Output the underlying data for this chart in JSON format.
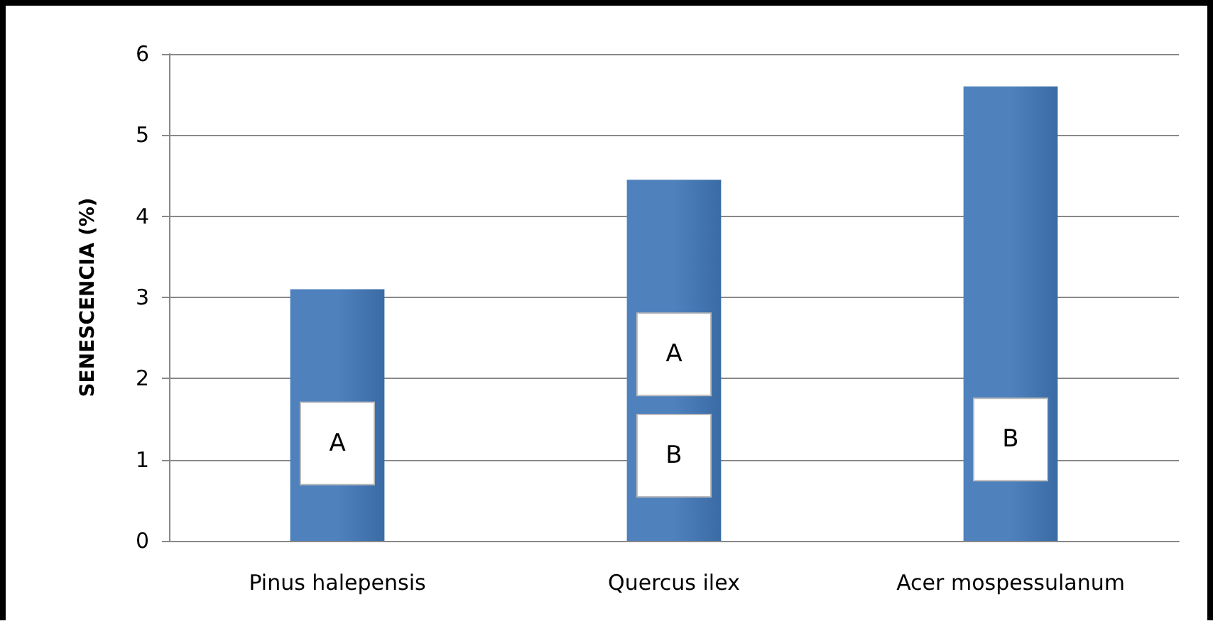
{
  "chart_data": {
    "type": "bar",
    "ylabel": "SENESCENCIA (%)",
    "categories": [
      "Pinus halepensis",
      "Quercus ilex",
      "Acer mospessulanum"
    ],
    "values": [
      3.1,
      4.45,
      5.6
    ],
    "color": "#4f81bd",
    "ylim": [
      0,
      6
    ],
    "yticks": [
      0,
      1,
      2,
      3,
      4,
      5,
      6
    ],
    "grid": "y",
    "annotations": [
      "A",
      "A",
      "B",
      "B"
    ]
  }
}
